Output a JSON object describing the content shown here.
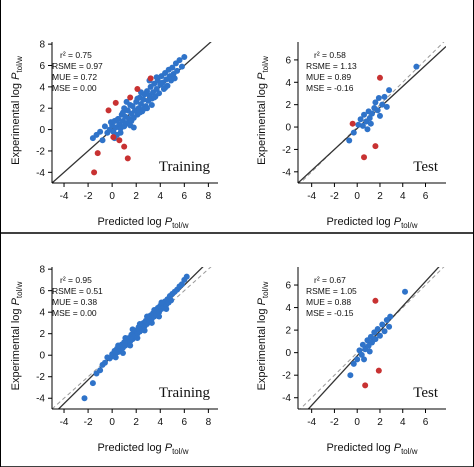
{
  "figure": {
    "y_axis_label": {
      "main": "Experimental log ",
      "var": "P",
      "sub": "tol/w"
    },
    "x_axis_label": {
      "main": "Predicted log ",
      "var": "P",
      "sub": "tol/w"
    }
  },
  "colors": {
    "inlier": "#2f73c9",
    "outlier": "#c83232",
    "fit_line": "#333333",
    "identity_line": "#9a9a9a",
    "frame": "#000000"
  },
  "chart_data": [
    {
      "id": "top-left",
      "type": "scatter",
      "label": "Training",
      "stats": {
        "r2": "r² = 0.75",
        "rsme": "RSME = 0.97",
        "mue": "MUE = 0.72",
        "mse": "MSE = 0.00"
      },
      "xlim": [
        -5,
        8.8
      ],
      "ylim": [
        -5,
        8.2
      ],
      "xticks": [
        -4,
        -2,
        0,
        2,
        4,
        6,
        8
      ],
      "yticks": [
        -4,
        -2,
        0,
        2,
        4,
        6,
        8
      ],
      "fit_line": [
        [
          -5,
          -5
        ],
        [
          8.8,
          8.8
        ]
      ],
      "identity_line": null,
      "outliers": [
        [
          -1.5,
          -4.0
        ],
        [
          -1.2,
          -2.2
        ],
        [
          -0.3,
          1.8
        ],
        [
          0.1,
          -0.7
        ],
        [
          0.3,
          2.5
        ],
        [
          0.6,
          -1.0
        ],
        [
          1.0,
          -1.6
        ],
        [
          1.5,
          3.0
        ],
        [
          2.1,
          3.8
        ],
        [
          3.2,
          4.8
        ],
        [
          1.3,
          -2.7
        ]
      ],
      "points": [
        [
          -1.6,
          -0.8
        ],
        [
          -1.3,
          -0.5
        ],
        [
          -1.0,
          -0.2
        ],
        [
          -0.8,
          -1.0
        ],
        [
          -0.6,
          0.3
        ],
        [
          -0.4,
          -0.3
        ],
        [
          -0.2,
          0.0
        ],
        [
          0.0,
          0.4
        ],
        [
          0.1,
          -0.2
        ],
        [
          0.2,
          0.8
        ],
        [
          0.3,
          0.2
        ],
        [
          0.4,
          -0.5
        ],
        [
          0.5,
          1.0
        ],
        [
          0.6,
          0.5
        ],
        [
          0.7,
          0.1
        ],
        [
          0.8,
          1.4
        ],
        [
          0.9,
          0.8
        ],
        [
          1.0,
          0.3
        ],
        [
          1.1,
          1.2
        ],
        [
          1.2,
          0.6
        ],
        [
          1.3,
          1.8
        ],
        [
          1.4,
          1.0
        ],
        [
          1.5,
          0.4
        ],
        [
          1.6,
          1.5
        ],
        [
          1.7,
          2.2
        ],
        [
          1.8,
          1.1
        ],
        [
          1.9,
          1.8
        ],
        [
          2.0,
          2.6
        ],
        [
          2.1,
          1.4
        ],
        [
          2.2,
          2.0
        ],
        [
          2.3,
          3.0
        ],
        [
          2.4,
          2.4
        ],
        [
          2.5,
          1.7
        ],
        [
          2.6,
          2.8
        ],
        [
          2.7,
          3.3
        ],
        [
          2.8,
          2.2
        ],
        [
          2.9,
          3.6
        ],
        [
          3.0,
          2.7
        ],
        [
          3.1,
          3.2
        ],
        [
          3.2,
          4.0
        ],
        [
          3.3,
          2.9
        ],
        [
          3.4,
          3.5
        ],
        [
          3.5,
          4.3
        ],
        [
          3.6,
          3.1
        ],
        [
          3.7,
          3.8
        ],
        [
          3.8,
          4.6
        ],
        [
          3.9,
          3.4
        ],
        [
          4.0,
          4.2
        ],
        [
          4.1,
          5.0
        ],
        [
          4.2,
          4.4
        ],
        [
          4.3,
          3.8
        ],
        [
          4.4,
          5.3
        ],
        [
          4.5,
          4.7
        ],
        [
          4.6,
          4.1
        ],
        [
          4.7,
          5.6
        ],
        [
          4.8,
          5.0
        ],
        [
          4.9,
          4.6
        ],
        [
          5.0,
          5.8
        ],
        [
          5.1,
          5.2
        ],
        [
          5.2,
          4.8
        ],
        [
          5.3,
          6.2
        ],
        [
          5.4,
          5.5
        ],
        [
          5.6,
          6.5
        ],
        [
          5.8,
          5.9
        ],
        [
          6.0,
          6.8
        ],
        [
          0.4,
          0.9
        ],
        [
          0.9,
          1.6
        ],
        [
          1.5,
          2.3
        ],
        [
          2.1,
          2.9
        ],
        [
          2.6,
          1.9
        ],
        [
          3.3,
          2.3
        ],
        [
          1.8,
          0.2
        ],
        [
          1.2,
          2.6
        ],
        [
          0.7,
          -0.3
        ],
        [
          2.4,
          3.5
        ],
        [
          3.1,
          4.6
        ],
        [
          3.7,
          4.9
        ],
        [
          4.4,
          3.9
        ],
        [
          1.6,
          0.8
        ],
        [
          2.3,
          1.6
        ],
        [
          0.2,
          -0.8
        ],
        [
          -0.1,
          0.7
        ],
        [
          1.0,
          2.0
        ],
        [
          2.9,
          2.0
        ],
        [
          3.5,
          3.0
        ]
      ]
    },
    {
      "id": "top-right",
      "type": "scatter",
      "label": "Test",
      "stats": {
        "r2": "r² = 0.58",
        "rsme": "RSME = 1.13",
        "mue": "MUE = 0.89",
        "mse": "MSE = -0.16"
      },
      "xlim": [
        -5.2,
        7.8
      ],
      "ylim": [
        -5,
        7.6
      ],
      "xticks": [
        -4,
        -2,
        0,
        2,
        4,
        6
      ],
      "yticks": [
        -4,
        -2,
        0,
        2,
        4,
        6
      ],
      "fit_line": [
        [
          -5.2,
          -5.0
        ],
        [
          7.8,
          7.2
        ]
      ],
      "identity_line": [
        [
          -5.2,
          -5.2
        ],
        [
          7.8,
          7.8
        ]
      ],
      "outliers": [
        [
          1.6,
          -1.7
        ],
        [
          0.6,
          -2.7
        ],
        [
          2.0,
          4.4
        ],
        [
          -0.4,
          0.3
        ]
      ],
      "points": [
        [
          -0.7,
          -1.2
        ],
        [
          -0.3,
          -0.5
        ],
        [
          0.1,
          0.2
        ],
        [
          0.3,
          0.7
        ],
        [
          0.5,
          0.1
        ],
        [
          0.6,
          1.1
        ],
        [
          0.8,
          0.5
        ],
        [
          1.0,
          1.4
        ],
        [
          1.1,
          0.8
        ],
        [
          1.3,
          1.2
        ],
        [
          1.5,
          1.7
        ],
        [
          1.6,
          2.2
        ],
        [
          1.8,
          1.5
        ],
        [
          2.0,
          1.0
        ],
        [
          2.2,
          2.0
        ],
        [
          2.4,
          2.7
        ],
        [
          2.6,
          1.8
        ],
        [
          2.8,
          3.3
        ],
        [
          1.2,
          0.3
        ],
        [
          0.9,
          -0.2
        ],
        [
          1.9,
          2.6
        ],
        [
          5.2,
          5.4
        ]
      ]
    },
    {
      "id": "bottom-left",
      "type": "scatter",
      "label": "Training",
      "stats": {
        "r2": "r² = 0.95",
        "rsme": "RSME = 0.51",
        "mue": "MUE = 0.38",
        "mse": "MSE = 0.00"
      },
      "xlim": [
        -5,
        8.8
      ],
      "ylim": [
        -5,
        8.2
      ],
      "xticks": [
        -4,
        -2,
        0,
        2,
        4,
        6,
        8
      ],
      "yticks": [
        -4,
        -2,
        0,
        2,
        4,
        6,
        8
      ],
      "fit_line": [
        [
          -5,
          -5.6
        ],
        [
          8.8,
          9.6
        ]
      ],
      "identity_line": [
        [
          -5,
          -5
        ],
        [
          8.8,
          8.8
        ]
      ],
      "outliers": [],
      "points": [
        [
          -2.3,
          -4.0
        ],
        [
          -1.6,
          -2.6
        ],
        [
          -1.3,
          -1.7
        ],
        [
          -1.0,
          -1.4
        ],
        [
          -0.8,
          -0.9
        ],
        [
          -0.6,
          -0.7
        ],
        [
          -0.4,
          -0.2
        ],
        [
          -0.2,
          -0.3
        ],
        [
          0.0,
          0.1
        ],
        [
          0.1,
          -0.1
        ],
        [
          0.2,
          0.4
        ],
        [
          0.3,
          0.2
        ],
        [
          0.4,
          0.6
        ],
        [
          0.5,
          0.3
        ],
        [
          0.6,
          0.8
        ],
        [
          0.7,
          0.5
        ],
        [
          0.8,
          1.0
        ],
        [
          0.9,
          0.7
        ],
        [
          1.0,
          1.2
        ],
        [
          1.1,
          0.9
        ],
        [
          1.2,
          1.4
        ],
        [
          1.3,
          1.1
        ],
        [
          1.4,
          1.6
        ],
        [
          1.5,
          1.3
        ],
        [
          1.6,
          1.9
        ],
        [
          1.7,
          1.5
        ],
        [
          1.8,
          2.1
        ],
        [
          1.9,
          1.8
        ],
        [
          2.0,
          2.3
        ],
        [
          2.1,
          2.0
        ],
        [
          2.2,
          2.6
        ],
        [
          2.3,
          2.2
        ],
        [
          2.4,
          2.8
        ],
        [
          2.5,
          2.5
        ],
        [
          2.6,
          3.0
        ],
        [
          2.7,
          2.7
        ],
        [
          2.8,
          3.2
        ],
        [
          2.9,
          2.9
        ],
        [
          3.0,
          3.5
        ],
        [
          3.1,
          3.1
        ],
        [
          3.2,
          3.7
        ],
        [
          3.3,
          3.4
        ],
        [
          3.4,
          3.9
        ],
        [
          3.5,
          3.6
        ],
        [
          3.6,
          4.1
        ],
        [
          3.7,
          3.8
        ],
        [
          3.8,
          4.4
        ],
        [
          3.9,
          4.0
        ],
        [
          4.0,
          4.6
        ],
        [
          4.1,
          4.3
        ],
        [
          4.2,
          4.8
        ],
        [
          4.3,
          4.5
        ],
        [
          4.4,
          5.0
        ],
        [
          4.5,
          4.7
        ],
        [
          4.6,
          5.2
        ],
        [
          4.7,
          4.9
        ],
        [
          4.8,
          5.5
        ],
        [
          4.9,
          5.1
        ],
        [
          5.0,
          5.7
        ],
        [
          5.2,
          5.9
        ],
        [
          5.4,
          6.1
        ],
        [
          5.6,
          6.4
        ],
        [
          5.8,
          6.6
        ],
        [
          6.0,
          7.0
        ],
        [
          6.2,
          7.3
        ],
        [
          0.5,
          0.9
        ],
        [
          1.1,
          1.6
        ],
        [
          1.7,
          2.4
        ],
        [
          2.3,
          2.9
        ],
        [
          2.9,
          3.6
        ],
        [
          3.5,
          4.2
        ],
        [
          4.1,
          4.9
        ],
        [
          0.3,
          -0.2
        ],
        [
          0.9,
          0.2
        ],
        [
          1.5,
          0.9
        ],
        [
          2.1,
          1.6
        ],
        [
          2.7,
          2.3
        ],
        [
          3.3,
          3.0
        ],
        [
          3.9,
          3.6
        ],
        [
          4.5,
          4.3
        ]
      ]
    },
    {
      "id": "bottom-right",
      "type": "scatter",
      "label": "Test",
      "stats": {
        "r2": "r² = 0.67",
        "rsme": "RSME = 1.05",
        "mue": "MUE = 0.88",
        "mse": "MSE = -0.15"
      },
      "xlim": [
        -5.2,
        7.8
      ],
      "ylim": [
        -5,
        7.6
      ],
      "xticks": [
        -4,
        -2,
        0,
        2,
        4,
        6
      ],
      "yticks": [
        -4,
        -2,
        0,
        2,
        4,
        6
      ],
      "fit_line": [
        [
          -5.2,
          -6.0
        ],
        [
          7.8,
          8.3
        ]
      ],
      "identity_line": [
        [
          -5.2,
          -5.2
        ],
        [
          7.8,
          7.8
        ]
      ],
      "outliers": [
        [
          1.6,
          4.6
        ],
        [
          0.7,
          -2.9
        ],
        [
          1.9,
          -1.6
        ]
      ],
      "points": [
        [
          -0.6,
          -2.0
        ],
        [
          -0.3,
          -1.0
        ],
        [
          0.0,
          -0.6
        ],
        [
          0.2,
          0.2
        ],
        [
          0.4,
          -0.2
        ],
        [
          0.5,
          0.7
        ],
        [
          0.7,
          0.3
        ],
        [
          0.9,
          1.1
        ],
        [
          1.0,
          0.6
        ],
        [
          1.2,
          1.4
        ],
        [
          1.3,
          0.9
        ],
        [
          1.5,
          1.8
        ],
        [
          1.6,
          1.2
        ],
        [
          1.8,
          2.1
        ],
        [
          2.0,
          1.5
        ],
        [
          2.2,
          2.5
        ],
        [
          2.4,
          1.9
        ],
        [
          2.6,
          2.9
        ],
        [
          2.8,
          2.3
        ],
        [
          1.1,
          0.1
        ],
        [
          0.6,
          -0.6
        ],
        [
          4.2,
          5.4
        ],
        [
          2.9,
          3.2
        ]
      ]
    }
  ]
}
